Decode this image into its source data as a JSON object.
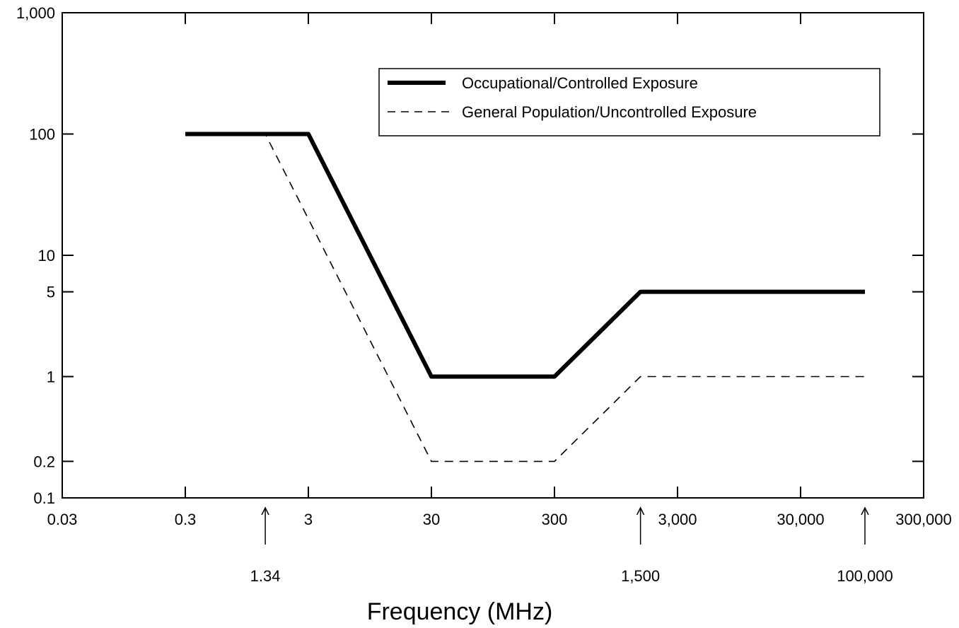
{
  "chart_data": {
    "type": "line",
    "title": "",
    "xlabel": "Frequency (MHz)",
    "ylabel": "",
    "x_scale": "log",
    "y_scale": "log",
    "xlim": [
      0.03,
      300000
    ],
    "ylim": [
      0.1,
      1000
    ],
    "x_ticks": [
      0.03,
      0.3,
      3,
      30,
      300,
      3000,
      30000,
      300000
    ],
    "x_tick_labels": [
      "0.03",
      "0.3",
      "3",
      "30",
      "300",
      "3,000",
      "30,000",
      "300,000"
    ],
    "y_ticks": [
      1000,
      100,
      10,
      5,
      1,
      0.2,
      0.1
    ],
    "y_tick_labels": [
      "1,000",
      "100",
      "10",
      "5",
      "1",
      "0.2",
      "0.1"
    ],
    "annotations": [
      {
        "x": 1.34,
        "label": "1.34"
      },
      {
        "x": 1500,
        "label": "1,500"
      },
      {
        "x": 100000,
        "label": "100,000"
      }
    ],
    "legend_position": "top-right",
    "grid": false,
    "series": [
      {
        "name": "Occupational/Controlled Exposure",
        "style": "solid",
        "color": "#000000",
        "x": [
          0.3,
          3,
          30,
          300,
          1500,
          100000
        ],
        "y": [
          100,
          100,
          1,
          1,
          5,
          5
        ]
      },
      {
        "name": "General Population/Uncontrolled Exposure",
        "style": "dashed",
        "color": "#000000",
        "x": [
          0.3,
          1.34,
          30,
          300,
          1500,
          100000
        ],
        "y": [
          100,
          100,
          0.2,
          0.2,
          1,
          1
        ]
      }
    ]
  }
}
